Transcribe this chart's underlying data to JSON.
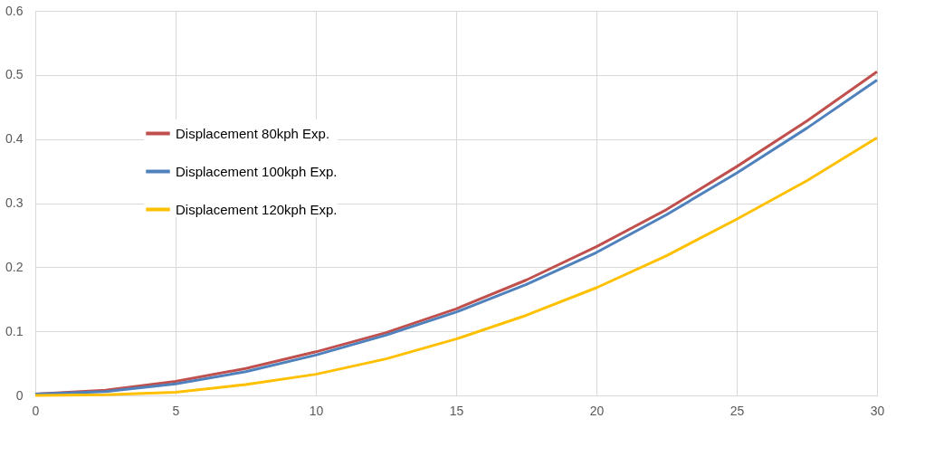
{
  "chart_data": {
    "type": "line",
    "x": [
      0,
      2.5,
      5,
      7.5,
      10,
      12.5,
      15,
      17.5,
      20,
      22.5,
      25,
      27.5,
      30
    ],
    "series": [
      {
        "name": "Displacement 80kph Exp.",
        "color": "#c0504d",
        "values": [
          0.002,
          0.008,
          0.022,
          0.042,
          0.068,
          0.098,
          0.135,
          0.18,
          0.232,
          0.29,
          0.357,
          0.428,
          0.505
        ]
      },
      {
        "name": "Displacement 100kph Exp.",
        "color": "#4f81bd",
        "values": [
          0.002,
          0.006,
          0.018,
          0.037,
          0.063,
          0.094,
          0.13,
          0.173,
          0.223,
          0.282,
          0.347,
          0.417,
          0.492
        ]
      },
      {
        "name": "Displacement 120kph Exp.",
        "color": "#ffc000",
        "values": [
          0,
          0.001,
          0.005,
          0.017,
          0.033,
          0.057,
          0.088,
          0.125,
          0.168,
          0.218,
          0.275,
          0.335,
          0.402
        ]
      }
    ],
    "xlim": [
      0,
      30
    ],
    "xticks": [
      0,
      5,
      10,
      15,
      20,
      25,
      30
    ],
    "ylim": [
      0,
      0.6
    ],
    "yticks": [
      0,
      0.1,
      0.2,
      0.3,
      0.4,
      0.5,
      0.6
    ],
    "grid": true,
    "legend": "top left",
    "marker": "none",
    "line_style": "solid"
  }
}
